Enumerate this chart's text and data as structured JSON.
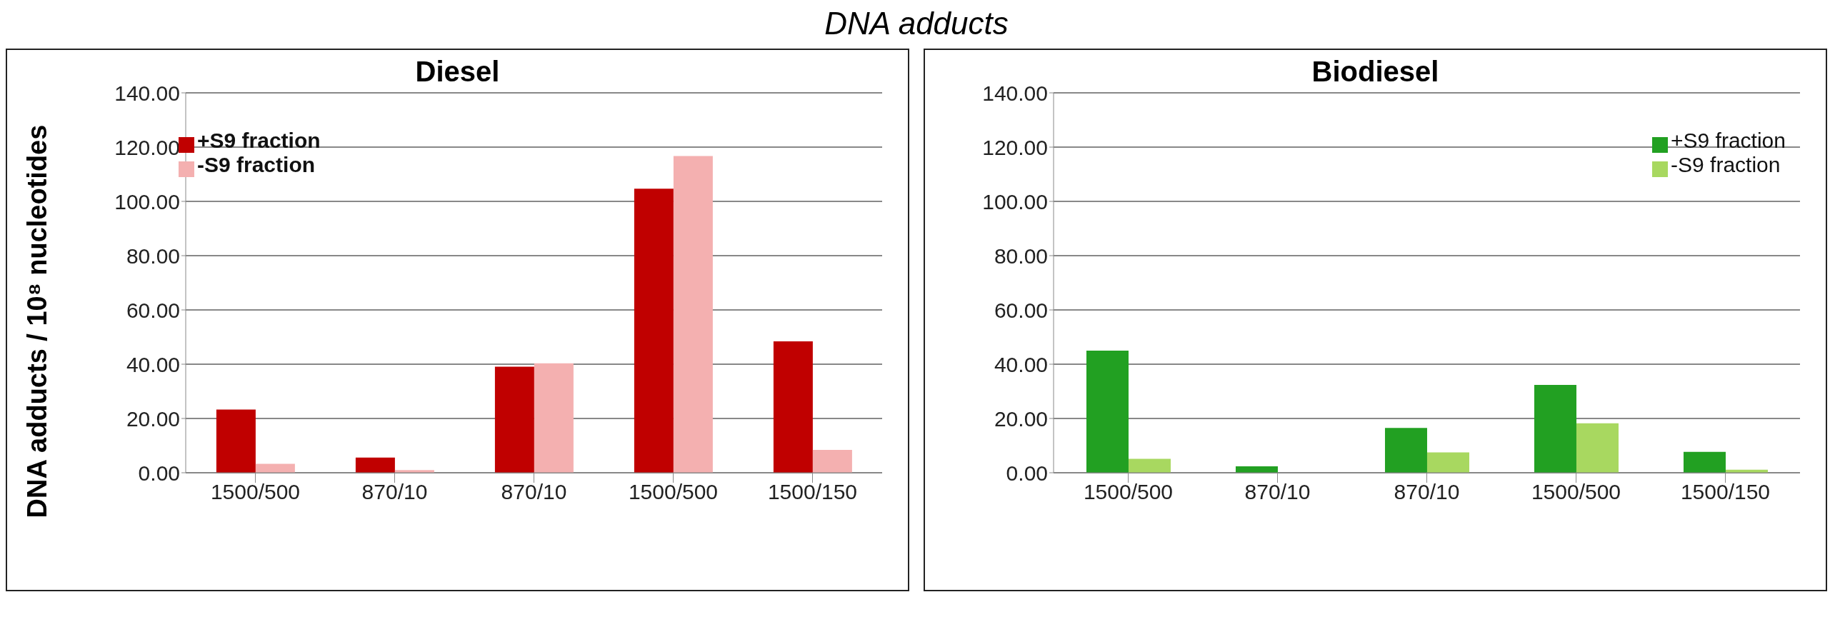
{
  "chart_data": [
    {
      "type": "bar",
      "title": "Diesel",
      "annotations": [
        "DNA adducts"
      ],
      "ylabel": "DNA adducts  / 10⁸ nucleotides",
      "categories": [
        "1500/500",
        "870/10",
        "870/10",
        "1500/500",
        "1500/150"
      ],
      "series": [
        {
          "name": "+S9 fraction",
          "color": "#c00000",
          "values": [
            23.3,
            5.6,
            39.1,
            104.7,
            48.4
          ]
        },
        {
          "name": "-S9 fraction",
          "color": "#f4b0b0",
          "values": [
            3.3,
            1.0,
            40.3,
            116.7,
            8.4
          ]
        }
      ],
      "ylim": [
        0,
        140
      ],
      "yticks": [
        {
          "value": 0,
          "label": "0.00"
        },
        {
          "value": 20,
          "label": "20.00"
        },
        {
          "value": 40,
          "label": "40.00"
        },
        {
          "value": 60,
          "label": "60.00"
        },
        {
          "value": 80,
          "label": "80.00"
        },
        {
          "value": 100,
          "label": "100.00"
        },
        {
          "value": 120,
          "label": "120.00"
        },
        {
          "value": 140,
          "label": "140.00"
        }
      ],
      "grid": "y",
      "legend": "top left"
    },
    {
      "type": "bar",
      "title": "Biodiesel",
      "categories": [
        "1500/500",
        "870/10",
        "870/10",
        "1500/500",
        "1500/150"
      ],
      "series": [
        {
          "name": "+S9 fraction",
          "color": "#22a022",
          "values": [
            45.0,
            2.4,
            16.5,
            32.4,
            7.7
          ]
        },
        {
          "name": "-S9 fraction",
          "color": "#a8d860",
          "values": [
            5.1,
            0,
            7.5,
            18.2,
            1.1
          ]
        }
      ],
      "ylim": [
        0,
        140
      ],
      "yticks": [
        {
          "value": 0,
          "label": "0.00"
        },
        {
          "value": 20,
          "label": "20.00"
        },
        {
          "value": 40,
          "label": "40.00"
        },
        {
          "value": 60,
          "label": "60.00"
        },
        {
          "value": 80,
          "label": "80.00"
        },
        {
          "value": 100,
          "label": "100.00"
        },
        {
          "value": 120,
          "label": "120.00"
        },
        {
          "value": 140,
          "label": "140.00"
        }
      ],
      "grid": "y",
      "legend": "top right"
    }
  ]
}
